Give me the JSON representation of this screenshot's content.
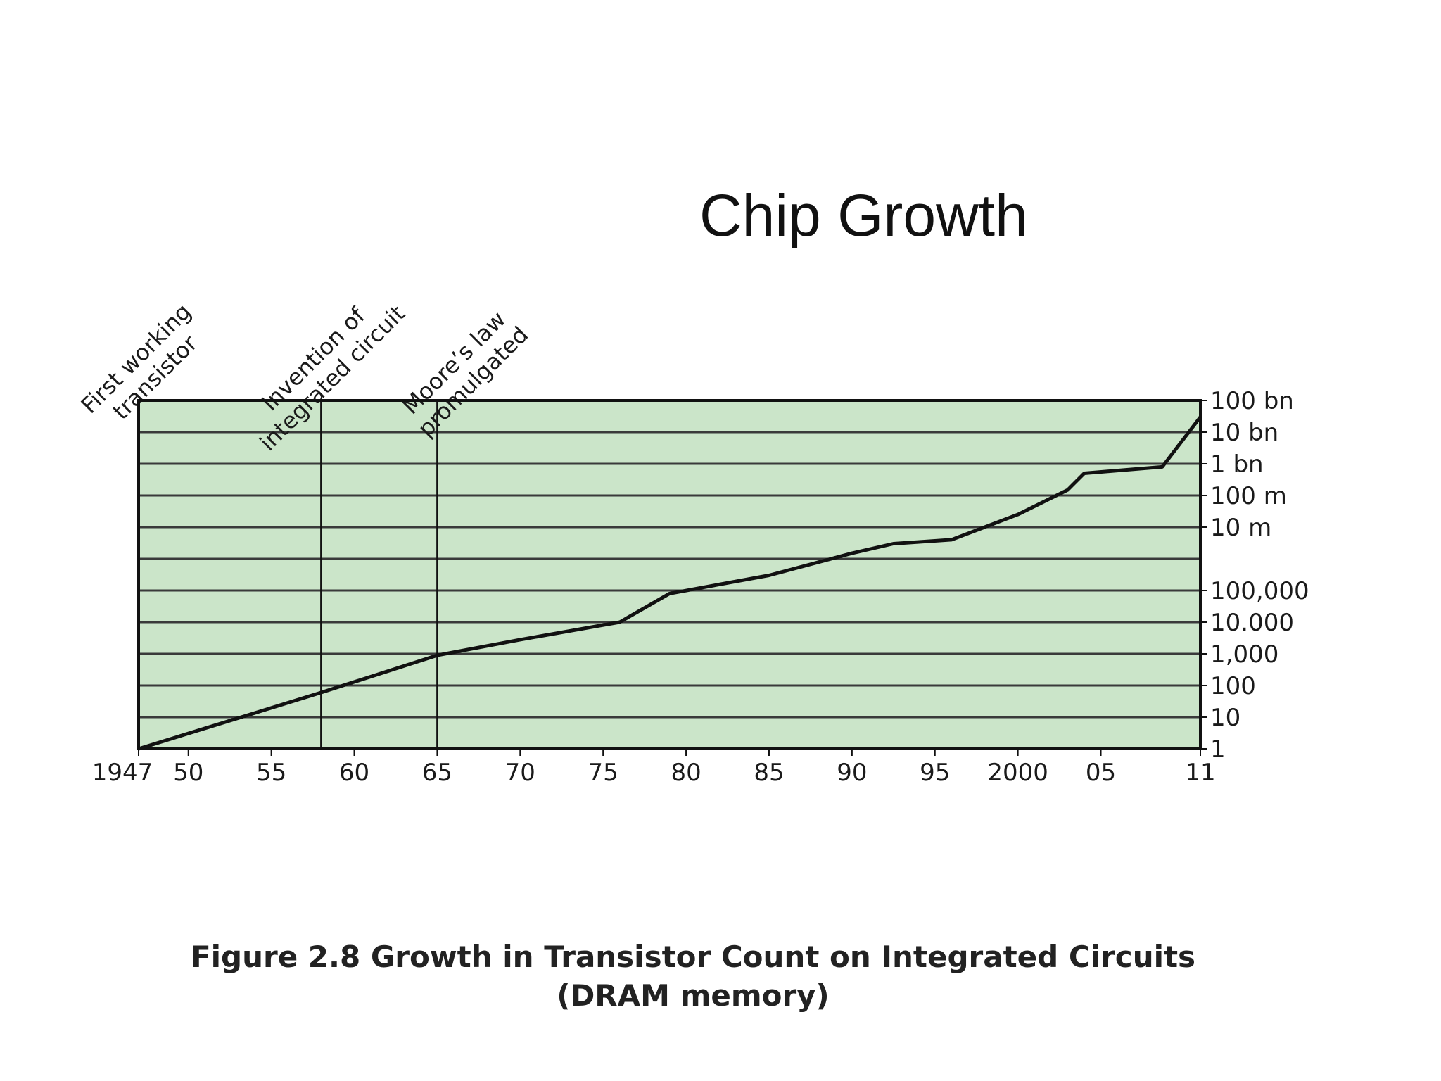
{
  "slide": {
    "title": "Chip Growth"
  },
  "figure_caption": {
    "line1": "Figure 2.8  Growth in Transistor Count on Integrated Circuits",
    "line2": "(DRAM memory)"
  },
  "colors": {
    "plot_bg": "#cbe5c9",
    "line": "#111111",
    "grid": "#3a3a3a"
  },
  "chart_data": {
    "type": "line",
    "title": "",
    "xlabel": "",
    "ylabel": "",
    "y_scale": "log",
    "xlim": [
      1947,
      2011
    ],
    "ylim": [
      1,
      100000000000
    ],
    "grid": true,
    "x_ticks": [
      {
        "year": 1947,
        "label": "1947"
      },
      {
        "year": 1950,
        "label": "50"
      },
      {
        "year": 1955,
        "label": "55"
      },
      {
        "year": 1960,
        "label": "60"
      },
      {
        "year": 1965,
        "label": "65"
      },
      {
        "year": 1970,
        "label": "70"
      },
      {
        "year": 1975,
        "label": "75"
      },
      {
        "year": 1980,
        "label": "80"
      },
      {
        "year": 1985,
        "label": "85"
      },
      {
        "year": 1990,
        "label": "90"
      },
      {
        "year": 1995,
        "label": "95"
      },
      {
        "year": 2000,
        "label": "2000"
      },
      {
        "year": 2005,
        "label": "05"
      },
      {
        "year": 2011,
        "label": "11"
      }
    ],
    "y_ticks": [
      {
        "value": 1,
        "label": "1"
      },
      {
        "value": 10,
        "label": "10"
      },
      {
        "value": 100,
        "label": "100"
      },
      {
        "value": 1000,
        "label": "1,000"
      },
      {
        "value": 10000,
        "label": "10.000"
      },
      {
        "value": 100000,
        "label": "100,000"
      },
      {
        "value": 10000000,
        "label": "10 m"
      },
      {
        "value": 100000000,
        "label": "100 m"
      },
      {
        "value": 1000000000,
        "label": "1 bn"
      },
      {
        "value": 10000000000,
        "label": "10 bn"
      },
      {
        "value": 100000000000,
        "label": "100 bn"
      }
    ],
    "series": [
      {
        "name": "",
        "points": [
          [
            1947,
            1
          ],
          [
            1958,
            60
          ],
          [
            1965,
            900
          ],
          [
            1970,
            2800
          ],
          [
            1976,
            10000
          ],
          [
            1979,
            80000
          ],
          [
            1985,
            300000
          ],
          [
            1990,
            1500000
          ],
          [
            1992.5,
            3000000
          ],
          [
            1996,
            4000000
          ],
          [
            2000,
            25000000
          ],
          [
            2003,
            150000000
          ],
          [
            2004,
            500000000
          ],
          [
            2008.7,
            800000000
          ],
          [
            2011,
            30000000000
          ]
        ]
      }
    ],
    "annotations": [
      {
        "year": 1947,
        "lines": [
          "First working",
          "transistor"
        ],
        "vertical_line": false
      },
      {
        "year": 1958,
        "lines": [
          "Invention of",
          "integrated circuit"
        ],
        "vertical_line": true
      },
      {
        "year": 1965,
        "lines": [
          "Moore’s law",
          "promulgated"
        ],
        "vertical_line": true
      }
    ]
  }
}
